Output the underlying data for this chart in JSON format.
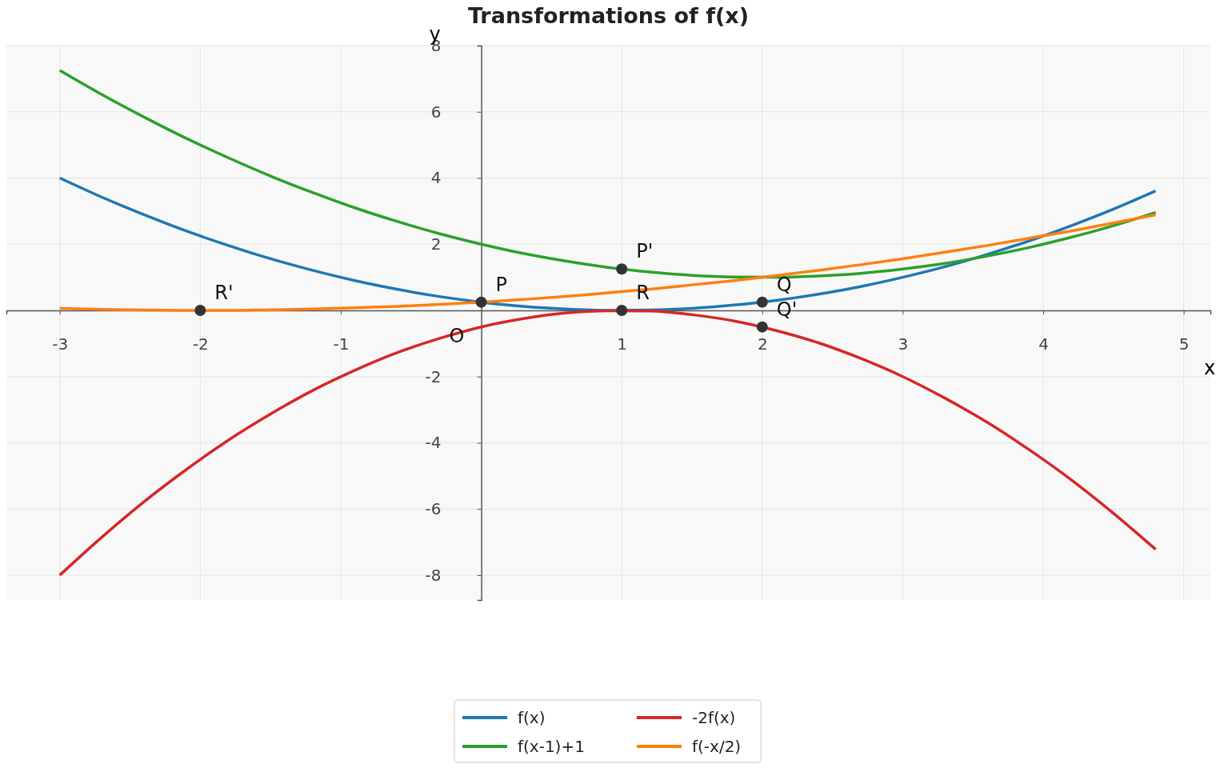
{
  "chart_data": {
    "type": "line",
    "title": "Transformations of f(x)",
    "xlabel": "x",
    "ylabel": "y",
    "x": [
      -3,
      -2.7,
      -2.4,
      -2.1,
      -1.8,
      -1.5,
      -1.2,
      -0.9,
      -0.6,
      -0.3,
      0,
      0.3,
      0.6,
      0.9,
      1.2,
      1.5,
      1.8,
      2.1,
      2.4,
      2.7,
      3,
      3.3,
      3.6,
      3.9,
      4.2,
      4.5,
      4.8
    ],
    "series": [
      {
        "name": "f(x)",
        "color": "#1f77b4",
        "values": [
          4,
          3.42,
          2.89,
          2.4,
          1.96,
          1.56,
          1.21,
          0.9,
          0.64,
          0.42,
          0.25,
          0.12,
          0.04,
          0,
          0.01,
          0.06,
          0.16,
          0.3,
          0.49,
          0.72,
          1,
          1.32,
          1.69,
          2.1,
          2.56,
          3.06,
          3.61
        ]
      },
      {
        "name": "f(x-1)+1",
        "color": "#2ca02c",
        "values": [
          7.25,
          6.52,
          5.84,
          5.2,
          4.61,
          4.06,
          3.56,
          3.1,
          2.69,
          2.32,
          2,
          1.72,
          1.49,
          1.3,
          1.16,
          1.06,
          1.01,
          1,
          1.04,
          1.12,
          1.25,
          1.42,
          1.64,
          1.9,
          2.21,
          2.56,
          2.96
        ]
      },
      {
        "name": "-2f(x)",
        "color": "#d62728",
        "values": [
          -8,
          -6.85,
          -5.78,
          -4.81,
          -3.92,
          -3.13,
          -2.42,
          -1.81,
          -1.28,
          -0.85,
          -0.5,
          -0.25,
          -0.08,
          -0.01,
          -0.02,
          -0.13,
          -0.32,
          -0.61,
          -0.98,
          -1.45,
          -2,
          -2.65,
          -3.38,
          -4.21,
          -5.12,
          -6.13,
          -7.22
        ]
      },
      {
        "name": "f(-x/2)",
        "color": "#ff7f0e",
        "values": [
          0.06,
          0.03,
          0.01,
          0,
          0,
          0.02,
          0.04,
          0.08,
          0.12,
          0.18,
          0.25,
          0.33,
          0.42,
          0.53,
          0.64,
          0.77,
          0.9,
          1.05,
          1.21,
          1.38,
          1.56,
          1.76,
          1.96,
          2.18,
          2.4,
          2.64,
          2.89
        ]
      },
      {
        "type": "scatter",
        "marker": "circle",
        "color": "#333333",
        "x": [
          0,
          1,
          2,
          2,
          1,
          -2
        ],
        "values": [
          0.25,
          1.25,
          0.25,
          -0.5,
          0,
          0
        ]
      }
    ],
    "annotations": [
      {
        "text": "P",
        "x": 0,
        "y": 0.25
      },
      {
        "text": "P'",
        "x": 1,
        "y": 1.25
      },
      {
        "text": "Q",
        "x": 2,
        "y": 0.25
      },
      {
        "text": "Q'",
        "x": 2,
        "y": -0.5
      },
      {
        "text": "R",
        "x": 1,
        "y": 0
      },
      {
        "text": "R'",
        "x": -2,
        "y": 0
      },
      {
        "text": "O",
        "x": 0,
        "y": 0
      }
    ],
    "xlim": [
      -3.38,
      5.19
    ],
    "ylim": [
      -8.75,
      8
    ],
    "xticks": [
      -3,
      -2,
      -1,
      1,
      2,
      3,
      4,
      5
    ],
    "yticks": [
      -8,
      -6,
      -4,
      -2,
      2,
      4,
      6,
      8
    ],
    "grid": true,
    "legend": "bottom",
    "marker": "none",
    "line_style": "solid"
  }
}
